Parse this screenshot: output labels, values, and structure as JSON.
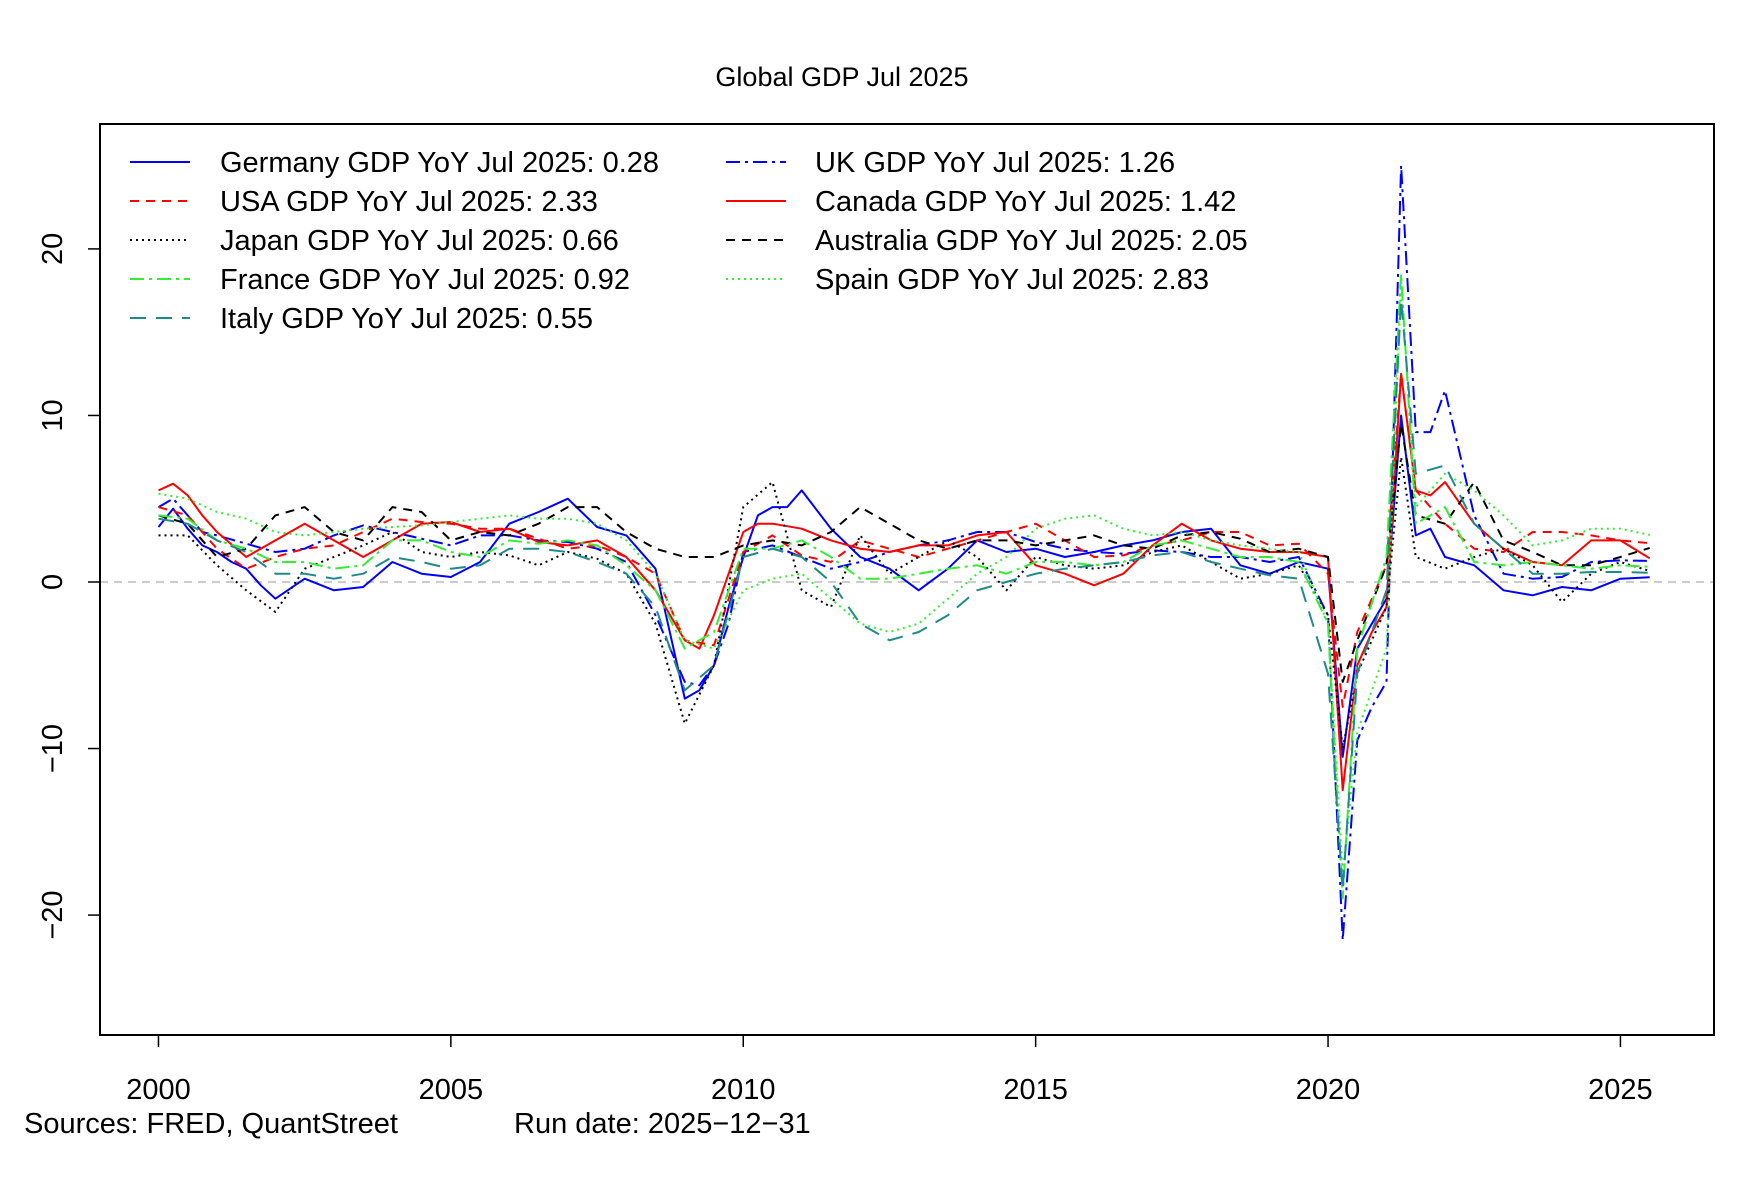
{
  "chart_data": {
    "type": "line",
    "title": "Global GDP Jul 2025",
    "xlabel": "",
    "ylabel": "",
    "xlim": [
      1999,
      2026.6
    ],
    "ylim": [
      -27.2,
      27.5
    ],
    "x_ticks": [
      2000,
      2005,
      2010,
      2015,
      2020,
      2025
    ],
    "y_ticks": [
      -20,
      -10,
      0,
      10,
      20
    ],
    "reference_line": 0,
    "grid": false,
    "legend_position": "top-left",
    "series": [
      {
        "name": "Germany",
        "legend": "Germany GDP YoY Jul 2025: 0.28",
        "color": "#0000ff",
        "dash": "",
        "x": [
          2000,
          2000.25,
          2000.5,
          2000.75,
          2001,
          2001.25,
          2001.5,
          2001.75,
          2002,
          2002.5,
          2003,
          2003.5,
          2004,
          2004.5,
          2005,
          2005.5,
          2006,
          2006.5,
          2007,
          2007.5,
          2008,
          2008.5,
          2009,
          2009.25,
          2009.5,
          2009.75,
          2010,
          2010.25,
          2010.5,
          2010.75,
          2011,
          2011.5,
          2012,
          2012.5,
          2013,
          2013.5,
          2014,
          2014.5,
          2015,
          2015.5,
          2016,
          2016.5,
          2017,
          2017.5,
          2018,
          2018.5,
          2019,
          2019.5,
          2020,
          2020.25,
          2020.5,
          2020.75,
          2021,
          2021.25,
          2021.5,
          2021.75,
          2022,
          2022.5,
          2023,
          2023.5,
          2024,
          2024.5,
          2025,
          2025.5
        ],
        "y": [
          3.3,
          4.4,
          3.2,
          2.2,
          1.8,
          1.2,
          0.8,
          -0.2,
          -1.0,
          0.2,
          -0.5,
          -0.3,
          1.2,
          0.5,
          0.3,
          1.2,
          3.5,
          4.2,
          5.0,
          3.3,
          2.8,
          0.8,
          -7.0,
          -6.5,
          -5.0,
          -1.5,
          1.5,
          4.0,
          4.5,
          4.5,
          5.5,
          3.2,
          1.5,
          0.8,
          -0.5,
          0.8,
          2.5,
          1.8,
          2.0,
          1.5,
          1.8,
          2.2,
          2.5,
          3.0,
          3.2,
          1.0,
          0.5,
          1.2,
          0.8,
          -10.5,
          -4.0,
          -2.5,
          -1.0,
          10.0,
          2.8,
          3.2,
          1.5,
          1.0,
          -0.5,
          -0.8,
          -0.3,
          -0.5,
          0.2,
          0.28
        ]
      },
      {
        "name": "UK",
        "legend": "UK GDP YoY Jul 2025: 1.26",
        "color": "#0000ff",
        "dash": "14,5,3,5",
        "x": [
          2000,
          2000.25,
          2000.5,
          2000.75,
          2001,
          2001.5,
          2002,
          2002.5,
          2003,
          2003.5,
          2004,
          2004.5,
          2005,
          2005.5,
          2006,
          2006.5,
          2007,
          2007.5,
          2008,
          2008.5,
          2009,
          2009.25,
          2009.5,
          2009.75,
          2010,
          2010.5,
          2011,
          2011.5,
          2012,
          2012.5,
          2013,
          2013.5,
          2014,
          2014.5,
          2015,
          2015.5,
          2016,
          2016.5,
          2017,
          2017.5,
          2018,
          2018.5,
          2019,
          2019.5,
          2020,
          2020.25,
          2020.5,
          2020.75,
          2021,
          2021.25,
          2021.5,
          2021.75,
          2022,
          2022.5,
          2023,
          2023.5,
          2024,
          2024.5,
          2025,
          2025.5
        ],
        "y": [
          4.5,
          5.0,
          4.0,
          3.0,
          2.8,
          2.3,
          1.8,
          2.0,
          2.8,
          3.4,
          3.0,
          2.6,
          2.2,
          2.8,
          2.8,
          2.5,
          2.4,
          2.0,
          1.2,
          -2.0,
          -6.0,
          -6.2,
          -5.0,
          -2.5,
          1.8,
          2.2,
          1.5,
          0.8,
          1.2,
          1.8,
          2.2,
          2.5,
          3.0,
          3.0,
          2.4,
          2.0,
          1.8,
          1.7,
          1.9,
          1.8,
          1.5,
          1.5,
          1.2,
          1.5,
          -2.0,
          -21.5,
          -9.5,
          -7.5,
          -6.0,
          25.0,
          9.0,
          9.0,
          11.5,
          4.0,
          0.5,
          0.2,
          0.3,
          1.2,
          1.3,
          1.26
        ]
      },
      {
        "name": "USA",
        "legend": "USA GDP YoY Jul 2025: 2.33",
        "color": "#ff0000",
        "dash": "9,7",
        "x": [
          2000,
          2000.5,
          2001,
          2001.5,
          2002,
          2002.5,
          2003,
          2003.5,
          2004,
          2004.5,
          2005,
          2005.5,
          2006,
          2006.5,
          2007,
          2007.5,
          2008,
          2008.5,
          2009,
          2009.5,
          2010,
          2010.5,
          2011,
          2011.5,
          2012,
          2012.5,
          2013,
          2013.5,
          2014,
          2014.5,
          2015,
          2015.5,
          2016,
          2016.5,
          2017,
          2017.5,
          2018,
          2018.5,
          2019,
          2019.5,
          2020,
          2020.25,
          2020.5,
          2021,
          2021.25,
          2021.5,
          2022,
          2022.5,
          2023,
          2023.5,
          2024,
          2024.5,
          2025,
          2025.5
        ],
        "y": [
          4.5,
          4.0,
          2.0,
          0.8,
          1.5,
          2.0,
          2.2,
          3.0,
          3.8,
          3.6,
          3.5,
          3.2,
          3.2,
          2.6,
          2.0,
          2.2,
          1.5,
          0.5,
          -3.5,
          -3.8,
          1.8,
          2.8,
          1.6,
          1.2,
          2.5,
          2.0,
          1.5,
          2.0,
          2.5,
          3.0,
          3.5,
          2.5,
          1.5,
          1.6,
          2.2,
          2.5,
          3.0,
          3.0,
          2.2,
          2.3,
          0.5,
          -7.5,
          -3.0,
          1.0,
          12.5,
          5.5,
          3.5,
          2.0,
          1.8,
          3.0,
          3.0,
          2.8,
          2.5,
          2.33
        ]
      },
      {
        "name": "Canada",
        "legend": "Canada GDP YoY Jul 2025: 1.42",
        "color": "#ff0000",
        "dash": "",
        "x": [
          2000,
          2000.25,
          2000.5,
          2000.75,
          2001,
          2001.5,
          2002,
          2002.5,
          2003,
          2003.5,
          2004,
          2004.5,
          2005,
          2005.5,
          2006,
          2006.5,
          2007,
          2007.5,
          2008,
          2008.5,
          2009,
          2009.25,
          2009.5,
          2010,
          2010.25,
          2010.5,
          2011,
          2011.5,
          2012,
          2012.5,
          2013,
          2013.5,
          2014,
          2014.5,
          2015,
          2015.5,
          2016,
          2016.5,
          2017,
          2017.5,
          2018,
          2018.5,
          2019,
          2019.5,
          2020,
          2020.25,
          2020.5,
          2020.75,
          2021,
          2021.25,
          2021.5,
          2021.75,
          2022,
          2022.5,
          2023,
          2023.5,
          2024,
          2024.5,
          2025,
          2025.5
        ],
        "y": [
          5.5,
          5.9,
          5.2,
          4.0,
          3.0,
          1.5,
          2.5,
          3.5,
          2.5,
          1.5,
          2.5,
          3.5,
          3.6,
          3.0,
          3.2,
          2.4,
          2.2,
          2.5,
          1.5,
          -0.5,
          -3.5,
          -4.0,
          -2.0,
          3.0,
          3.5,
          3.5,
          3.2,
          2.5,
          2.0,
          1.8,
          2.2,
          2.2,
          2.8,
          3.0,
          1.0,
          0.5,
          -0.2,
          0.5,
          2.2,
          3.5,
          2.5,
          2.0,
          1.8,
          1.8,
          1.5,
          -12.5,
          -5.0,
          -3.0,
          -1.5,
          12.5,
          5.5,
          5.2,
          6.0,
          3.5,
          2.0,
          1.2,
          1.0,
          2.5,
          2.5,
          1.42
        ]
      },
      {
        "name": "Japan",
        "legend": "Japan GDP YoY Jul 2025: 0.66",
        "color": "#000000",
        "dash": "2,4",
        "x": [
          2000,
          2000.5,
          2001,
          2001.5,
          2002,
          2002.5,
          2003,
          2003.5,
          2004,
          2004.5,
          2005,
          2005.5,
          2006,
          2006.5,
          2007,
          2007.5,
          2008,
          2008.5,
          2009,
          2009.5,
          2010,
          2010.5,
          2011,
          2011.5,
          2012,
          2012.5,
          2013,
          2013.5,
          2014,
          2014.5,
          2015,
          2015.5,
          2016,
          2016.5,
          2017,
          2017.5,
          2018,
          2018.5,
          2019,
          2019.5,
          2020,
          2020.25,
          2020.5,
          2021,
          2021.25,
          2021.5,
          2022,
          2022.5,
          2023,
          2023.5,
          2024,
          2024.5,
          2025,
          2025.5
        ],
        "y": [
          2.8,
          2.8,
          1.0,
          -0.5,
          -1.8,
          0.8,
          1.5,
          2.2,
          3.0,
          1.8,
          1.5,
          1.8,
          1.6,
          1.0,
          1.8,
          1.4,
          0.5,
          -2.5,
          -8.5,
          -5.0,
          4.5,
          6.0,
          -0.5,
          -1.5,
          2.8,
          0.5,
          1.5,
          2.5,
          1.5,
          -0.5,
          1.5,
          1.0,
          0.8,
          1.0,
          1.8,
          2.2,
          1.2,
          0.2,
          0.5,
          1.0,
          -2.0,
          -10.0,
          -5.5,
          -1.5,
          7.5,
          1.5,
          0.8,
          1.5,
          2.0,
          1.0,
          -1.2,
          0.5,
          1.2,
          0.66
        ]
      },
      {
        "name": "Australia",
        "legend": "Australia GDP YoY Jul 2025: 2.05",
        "color": "#000000",
        "dash": "9,7",
        "x": [
          2000,
          2000.5,
          2001,
          2001.5,
          2002,
          2002.5,
          2003,
          2003.5,
          2004,
          2004.5,
          2005,
          2005.5,
          2006,
          2006.5,
          2007,
          2007.5,
          2008,
          2008.5,
          2009,
          2009.5,
          2010,
          2010.5,
          2011,
          2011.5,
          2012,
          2012.5,
          2013,
          2013.5,
          2014,
          2014.5,
          2015,
          2015.5,
          2016,
          2016.5,
          2017,
          2017.5,
          2018,
          2018.5,
          2019,
          2019.5,
          2020,
          2020.25,
          2020.5,
          2021,
          2021.25,
          2021.5,
          2022,
          2022.5,
          2023,
          2023.5,
          2024,
          2024.5,
          2025,
          2025.5
        ],
        "y": [
          4.0,
          3.5,
          1.5,
          2.0,
          4.0,
          4.5,
          3.0,
          2.5,
          4.5,
          4.2,
          2.5,
          3.0,
          2.8,
          3.5,
          4.5,
          4.5,
          3.0,
          2.0,
          1.5,
          1.5,
          2.2,
          2.5,
          2.2,
          3.0,
          4.5,
          3.5,
          2.5,
          2.0,
          2.5,
          2.5,
          2.2,
          2.5,
          2.8,
          2.2,
          2.0,
          2.8,
          3.0,
          2.6,
          1.8,
          2.0,
          1.5,
          -6.0,
          -3.5,
          1.0,
          9.5,
          4.0,
          3.5,
          6.0,
          2.5,
          1.8,
          1.0,
          1.0,
          1.5,
          2.05
        ]
      },
      {
        "name": "France",
        "legend": "France GDP YoY Jul 2025: 0.92",
        "color": "#33ee33",
        "dash": "14,5,3,5",
        "x": [
          2000,
          2000.5,
          2001,
          2001.5,
          2002,
          2002.5,
          2003,
          2003.5,
          2004,
          2004.5,
          2005,
          2005.5,
          2006,
          2006.5,
          2007,
          2007.5,
          2008,
          2008.5,
          2009,
          2009.5,
          2010,
          2010.5,
          2011,
          2011.5,
          2012,
          2012.5,
          2013,
          2013.5,
          2014,
          2014.5,
          2015,
          2015.5,
          2016,
          2016.5,
          2017,
          2017.5,
          2018,
          2018.5,
          2019,
          2019.5,
          2020,
          2020.25,
          2020.5,
          2021,
          2021.25,
          2021.5,
          2022,
          2022.5,
          2023,
          2023.5,
          2024,
          2024.5,
          2025,
          2025.5
        ],
        "y": [
          4.0,
          3.8,
          2.5,
          2.0,
          1.2,
          1.2,
          0.8,
          1.0,
          2.5,
          2.5,
          1.8,
          1.5,
          2.5,
          2.3,
          2.5,
          2.2,
          1.0,
          -0.5,
          -4.0,
          -3.0,
          2.0,
          2.0,
          2.5,
          1.5,
          0.2,
          0.2,
          0.5,
          0.8,
          1.0,
          0.5,
          1.2,
          1.2,
          1.0,
          1.2,
          2.2,
          2.5,
          2.0,
          1.5,
          1.5,
          1.2,
          -2.5,
          -19.0,
          -4.0,
          1.5,
          18.5,
          3.5,
          4.5,
          1.2,
          1.0,
          1.2,
          1.0,
          0.8,
          1.0,
          0.92
        ]
      },
      {
        "name": "Spain",
        "legend": "Spain GDP YoY Jul 2025: 2.83",
        "color": "#33ee33",
        "dash": "2,4",
        "x": [
          2000,
          2000.5,
          2001,
          2001.5,
          2002,
          2002.5,
          2003,
          2003.5,
          2004,
          2004.5,
          2005,
          2005.5,
          2006,
          2006.5,
          2007,
          2007.5,
          2008,
          2008.5,
          2009,
          2009.5,
          2010,
          2010.5,
          2011,
          2011.5,
          2012,
          2012.5,
          2013,
          2013.5,
          2014,
          2014.5,
          2015,
          2015.5,
          2016,
          2016.5,
          2017,
          2017.5,
          2018,
          2018.5,
          2019,
          2019.5,
          2020,
          2020.25,
          2020.5,
          2021,
          2021.25,
          2021.5,
          2022,
          2022.5,
          2023,
          2023.5,
          2024,
          2024.5,
          2025,
          2025.5
        ],
        "y": [
          5.3,
          5.0,
          4.2,
          3.8,
          3.0,
          2.8,
          3.0,
          3.2,
          3.3,
          3.4,
          3.6,
          3.8,
          4.0,
          3.8,
          3.8,
          3.5,
          2.5,
          0.5,
          -3.5,
          -4.0,
          -0.5,
          0.2,
          0.5,
          -1.0,
          -2.5,
          -3.0,
          -2.5,
          -1.0,
          0.5,
          1.5,
          3.2,
          3.8,
          4.0,
          3.2,
          2.8,
          3.0,
          2.5,
          2.2,
          2.0,
          1.8,
          -2.5,
          -17.5,
          -9.0,
          -4.0,
          18.0,
          4.5,
          6.5,
          5.5,
          4.0,
          2.2,
          2.5,
          3.2,
          3.2,
          2.83
        ]
      },
      {
        "name": "Italy",
        "legend": "Italy GDP YoY Jul 2025: 0.55",
        "color": "#1f8a8a",
        "dash": "16,10",
        "x": [
          2000,
          2000.5,
          2001,
          2001.5,
          2002,
          2002.5,
          2003,
          2003.5,
          2004,
          2004.5,
          2005,
          2005.5,
          2006,
          2006.5,
          2007,
          2007.5,
          2008,
          2008.5,
          2009,
          2009.5,
          2010,
          2010.5,
          2011,
          2011.5,
          2012,
          2012.5,
          2013,
          2013.5,
          2014,
          2014.5,
          2015,
          2015.5,
          2016,
          2016.5,
          2017,
          2017.5,
          2018,
          2018.5,
          2019,
          2019.5,
          2020,
          2020.25,
          2020.5,
          2021,
          2021.25,
          2021.5,
          2022,
          2022.5,
          2023,
          2023.5,
          2024,
          2024.5,
          2025,
          2025.5
        ],
        "y": [
          3.8,
          3.5,
          2.5,
          1.8,
          0.5,
          0.5,
          0.2,
          0.5,
          1.5,
          1.2,
          0.8,
          1.0,
          2.0,
          2.0,
          1.8,
          1.2,
          0.5,
          -1.5,
          -6.5,
          -5.0,
          1.5,
          2.0,
          1.5,
          0.0,
          -2.5,
          -3.5,
          -3.0,
          -2.0,
          -0.5,
          0.0,
          0.5,
          0.8,
          1.0,
          1.2,
          1.6,
          1.8,
          1.2,
          0.8,
          0.4,
          0.2,
          -5.5,
          -18.5,
          -5.5,
          -0.5,
          17.0,
          6.5,
          7.0,
          3.5,
          2.0,
          0.5,
          0.5,
          0.6,
          0.6,
          0.55
        ]
      }
    ]
  },
  "footer": {
    "sources": "Sources: FRED, QuantStreet",
    "run_date": "Run date: 2025−12−31"
  }
}
